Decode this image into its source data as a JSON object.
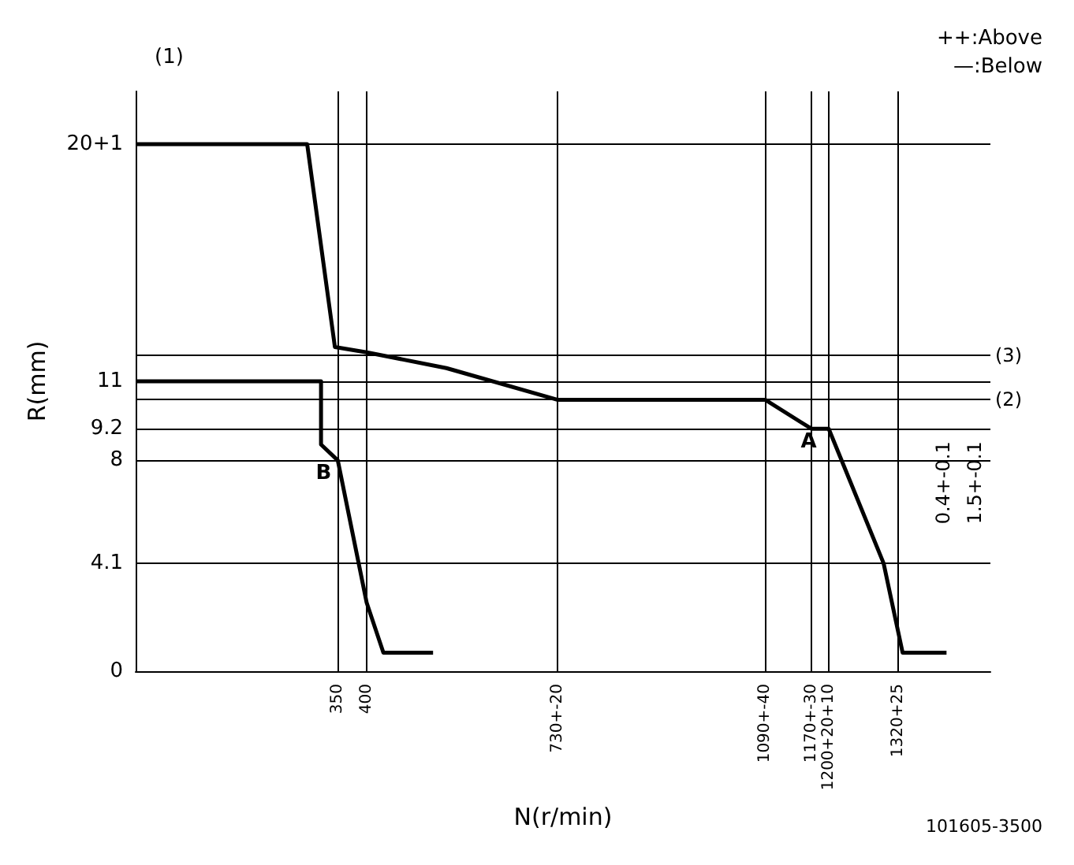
{
  "chart_data": {
    "type": "line",
    "xlabel": "N(r/min)",
    "ylabel": "R(mm)",
    "xlim": [
      0,
      1480
    ],
    "ylim": [
      0,
      22
    ],
    "xticks": [
      350,
      400,
      {
        "value": 730,
        "label": "730+-20"
      },
      {
        "value": 1090,
        "label": "1090+-40"
      },
      {
        "value": 1170,
        "label": "1170+-30"
      },
      {
        "value": 1200,
        "label": "1200+20+10"
      },
      {
        "value": 1320,
        "label": "1320+25"
      }
    ],
    "yticks": [
      0,
      4.1,
      8,
      9.2,
      11,
      {
        "value": 20,
        "label": "20+1"
      }
    ],
    "series": [
      {
        "color": "#000000",
        "x": [
          0,
          297,
          345,
          400,
          538,
          730,
          1090,
          1170,
          1200,
          1295,
          1328,
          1404
        ],
        "values": [
          20,
          20,
          12.3,
          12.1,
          11.5,
          10.3,
          10.3,
          9.2,
          9.2,
          4.1,
          0.7,
          0.7
        ]
      },
      {
        "color": "#000000",
        "x": [
          0,
          321,
          321,
          350,
          400,
          429,
          515
        ],
        "values": [
          11,
          11,
          8.6,
          8,
          2.6,
          0.7,
          0.7
        ]
      }
    ],
    "ref_lines": [
      {
        "axis": "y",
        "value": 10.3
      },
      {
        "axis": "y",
        "value": 12.0
      }
    ],
    "annotations": [
      "(1)",
      "++:Above",
      "—:Below",
      "101605-3500",
      "0.4+-0.1",
      "1.5+-0.1",
      {
        "text": "A",
        "x": 1190,
        "y": 9.2
      },
      {
        "text": "B",
        "x": 350,
        "y": 8
      },
      {
        "text": "(2)",
        "x": 1480,
        "y": 10.3
      },
      {
        "text": "(3)",
        "x": 1480,
        "y": 12.0
      }
    ],
    "grid": true,
    "marker": "none",
    "line_style": "solid"
  }
}
